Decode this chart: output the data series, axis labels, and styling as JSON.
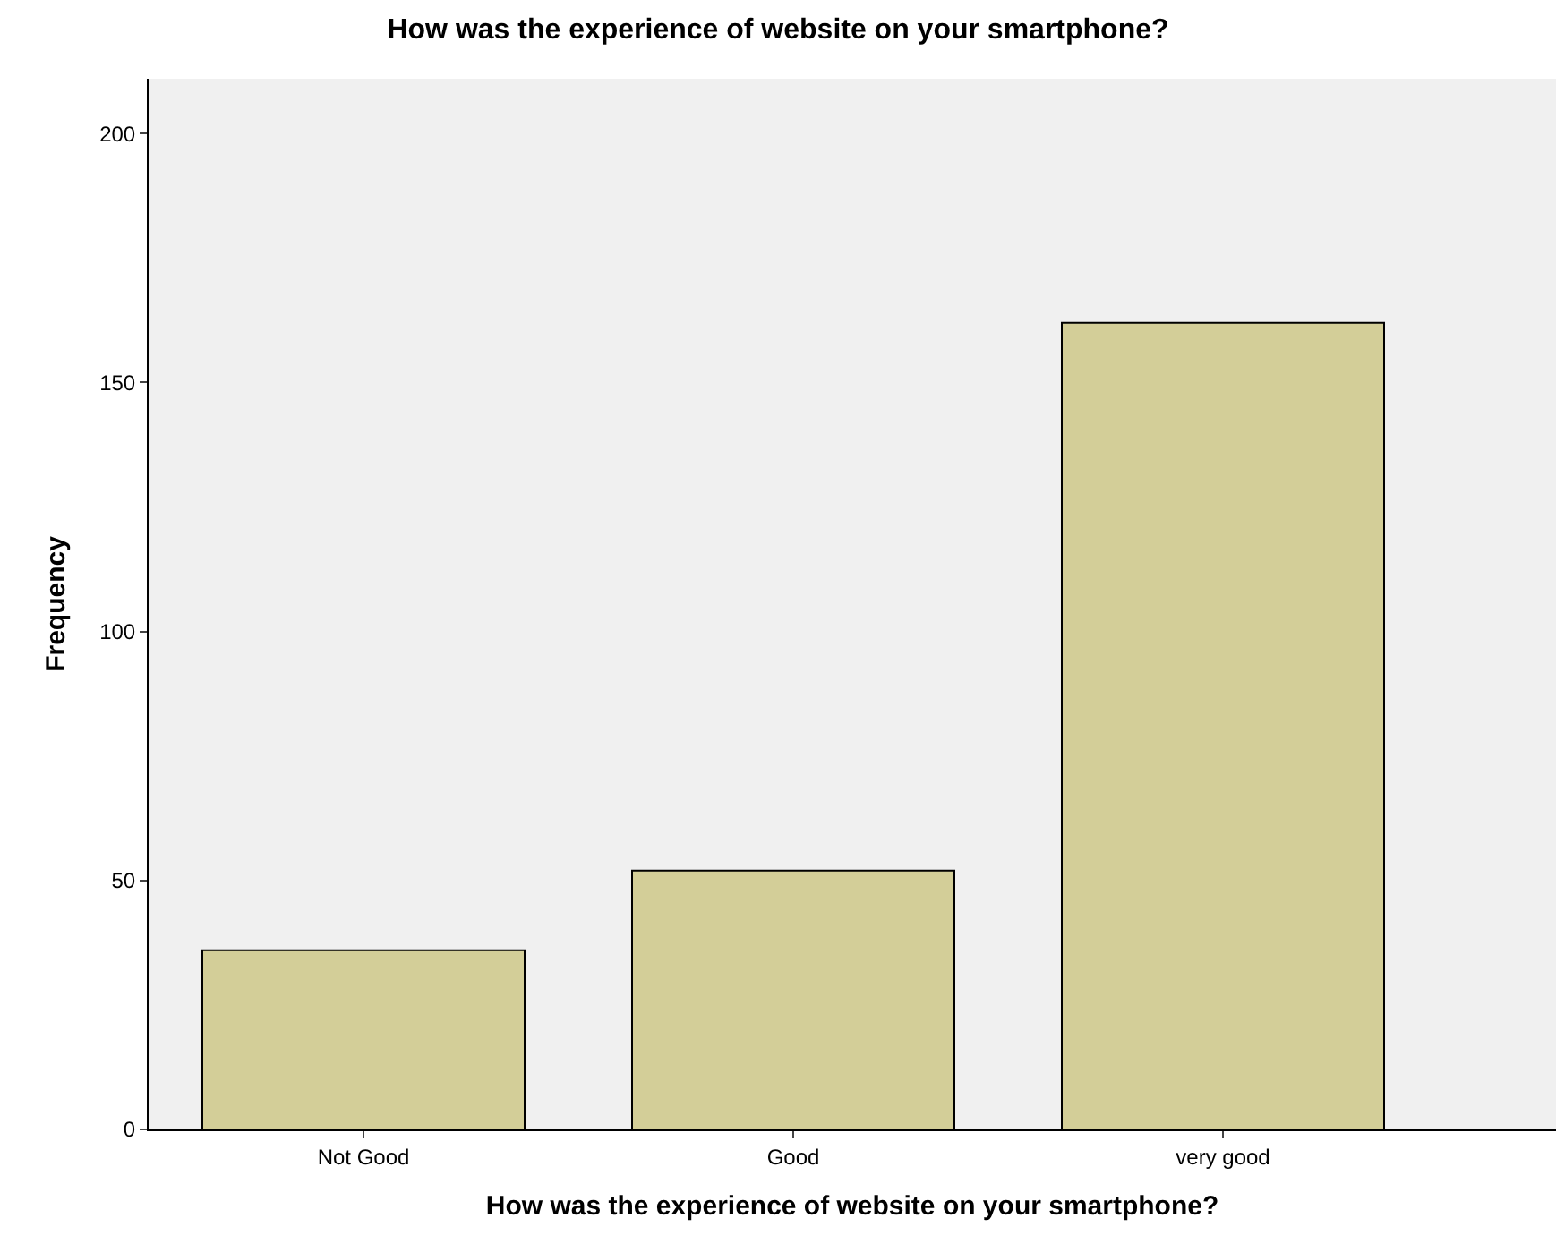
{
  "chart_data": {
    "type": "bar",
    "title": "How was the experience of website on your smartphone?",
    "xlabel": "How was the experience of website on your smartphone?",
    "ylabel": "Frequency",
    "categories": [
      "Not Good",
      "Good",
      "very good"
    ],
    "values": [
      36,
      52,
      162
    ],
    "color": "#d3ce98",
    "ylim": [
      0,
      211
    ],
    "yticks": [
      0,
      50,
      100,
      150,
      200
    ],
    "grid": false
  }
}
